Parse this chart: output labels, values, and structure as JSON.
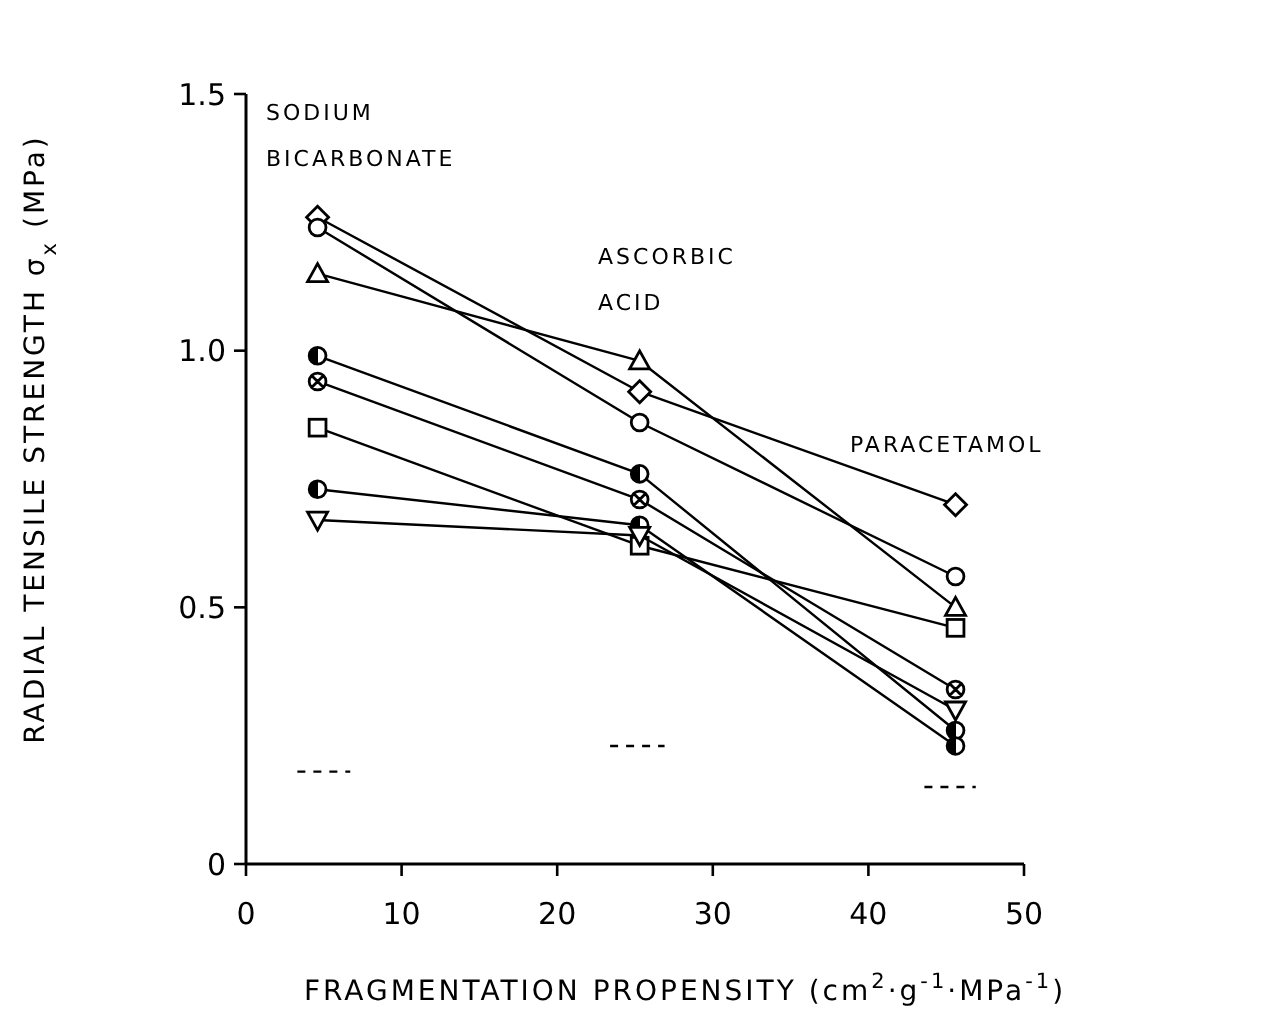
{
  "chart_data": {
    "type": "line",
    "xlabel": "FRAGMENTATION PROPENSITY (cm$^{2}$·g$^{-1}$·MPa$^{-1}$)",
    "ylabel": "RADIAL TENSILE STRENGTH  σ$_{x}$ (MPa)",
    "x": [
      4.6,
      25.3,
      45.6
    ],
    "xlim": [
      0,
      50
    ],
    "ylim": [
      0,
      1.5
    ],
    "xticks": [
      0,
      10,
      20,
      30,
      40,
      50
    ],
    "yticks": [
      0,
      {
        "value": 0.5,
        "label": "0.5"
      },
      {
        "value": 1,
        "label": "1.0"
      },
      {
        "value": 1.5,
        "label": "1.5"
      }
    ],
    "color": "#000000",
    "series": [
      {
        "marker": "diamond",
        "values": [
          1.26,
          0.92,
          0.7
        ]
      },
      {
        "marker": "circle",
        "values": [
          1.24,
          0.86,
          0.56
        ]
      },
      {
        "marker": "triangle",
        "values": [
          1.15,
          0.98,
          0.5
        ]
      },
      {
        "marker": "circle-half",
        "values": [
          0.99,
          0.76,
          0.26
        ]
      },
      {
        "marker": "cross",
        "values": [
          0.94,
          0.71,
          0.34
        ]
      },
      {
        "marker": "square",
        "values": [
          0.85,
          0.62,
          0.46
        ]
      },
      {
        "marker": "circle-half",
        "values": [
          0.73,
          0.66,
          0.23
        ]
      },
      {
        "marker": "triangle-down",
        "values": [
          0.67,
          0.64,
          0.3
        ]
      },
      {
        "marker": "none",
        "line_style": "dashed",
        "x": [
          3.3,
          6.7
        ],
        "values": [
          0.18,
          0.18
        ]
      },
      {
        "marker": "none",
        "line_style": "dashed",
        "x": [
          23.4,
          26.9
        ],
        "values": [
          0.23,
          0.23
        ]
      },
      {
        "marker": "none",
        "line_style": "dashed",
        "x": [
          43.6,
          46.9
        ],
        "values": [
          0.15,
          0.15
        ]
      }
    ],
    "annotations": [
      "SODIUM",
      "BICARBONATE",
      "ASCORBIC",
      "ACID",
      "PARACETAMOL"
    ]
  }
}
